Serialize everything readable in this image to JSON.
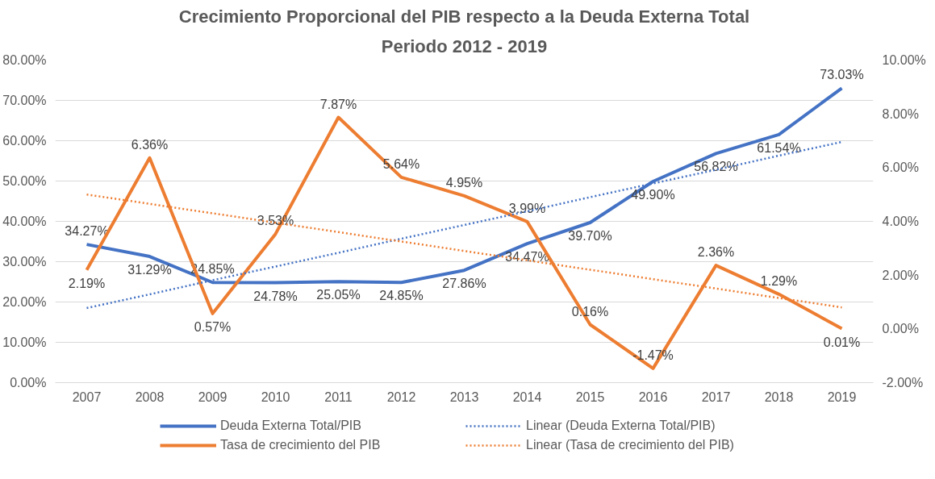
{
  "chart_data": {
    "type": "line",
    "title": "Crecimiento Proporcional del PIB respecto a la Deuda Externa Total",
    "subtitle": "Periodo 2012 - 2019",
    "categories": [
      "2007",
      "2008",
      "2009",
      "2010",
      "2011",
      "2012",
      "2013",
      "2014",
      "2015",
      "2016",
      "2017",
      "2018",
      "2019"
    ],
    "series": [
      {
        "name": "Deuda Externa Total/PIB",
        "color": "#4472c4",
        "values": [
          34.27,
          31.29,
          24.85,
          24.78,
          25.05,
          24.85,
          27.86,
          34.47,
          39.7,
          49.9,
          56.82,
          61.54,
          73.03
        ],
        "value_labels": [
          "34.27%",
          "31.29%",
          "24.85%",
          "24.78%",
          "25.05%",
          "24.85%",
          "27.86%",
          "34.47%",
          "39.70%",
          "49.90%",
          "56.82%",
          "61.54%",
          "73.03%"
        ]
      },
      {
        "name": "Tasa de crecimiento del PIB",
        "color": "#ed7d31",
        "axis": "y2",
        "values": [
          2.19,
          6.36,
          0.57,
          3.53,
          7.87,
          5.64,
          4.95,
          3.99,
          0.16,
          -1.47,
          2.36,
          1.29,
          0.01
        ],
        "value_labels": [
          "2.19%",
          "6.36%",
          "0.57%",
          "3.53%",
          "7.87%",
          "5.64%",
          "4.95%",
          "3.99%",
          "0.16%",
          "-1.47%",
          "2.36%",
          "1.29%",
          "0.01%"
        ]
      },
      {
        "name": "Linear (Deuda Externa Total/PIB)",
        "color": "#4472c4",
        "line_style": "dotted",
        "values": [
          18.5,
          21.9,
          25.4,
          28.8,
          32.2,
          35.7,
          39.1,
          42.5,
          46.0,
          49.4,
          52.8,
          56.3,
          59.7
        ]
      },
      {
        "name": "Linear (Tasa de crecimiento del PIB)",
        "color": "#ed7d31",
        "line_style": "dotted",
        "axis": "y2",
        "values": [
          5.0,
          4.65,
          4.3,
          3.95,
          3.6,
          3.25,
          2.9,
          2.55,
          2.2,
          1.85,
          1.5,
          1.15,
          0.8
        ]
      }
    ],
    "ylim": [
      0,
      80
    ],
    "yticks": [
      {
        "value": 0,
        "label": "0.00%"
      },
      {
        "value": 10,
        "label": "10.00%"
      },
      {
        "value": 20,
        "label": "20.00%"
      },
      {
        "value": 30,
        "label": "30.00%"
      },
      {
        "value": 40,
        "label": "40.00%"
      },
      {
        "value": 50,
        "label": "50.00%"
      },
      {
        "value": 60,
        "label": "60.00%"
      },
      {
        "value": 70,
        "label": "70.00%"
      },
      {
        "value": 80,
        "label": "80.00%"
      }
    ],
    "y2lim": [
      -2,
      10
    ],
    "y2ticks": [
      {
        "value": -2,
        "label": "-2.00%"
      },
      {
        "value": 0,
        "label": "0.00%"
      },
      {
        "value": 2,
        "label": "2.00%"
      },
      {
        "value": 4,
        "label": "4.00%"
      },
      {
        "value": 6,
        "label": "6.00%"
      },
      {
        "value": 8,
        "label": "8.00%"
      },
      {
        "value": 10,
        "label": "10.00%"
      }
    ],
    "grid": "y",
    "legend": "bottom",
    "marker": "none",
    "line_style": "solid"
  }
}
